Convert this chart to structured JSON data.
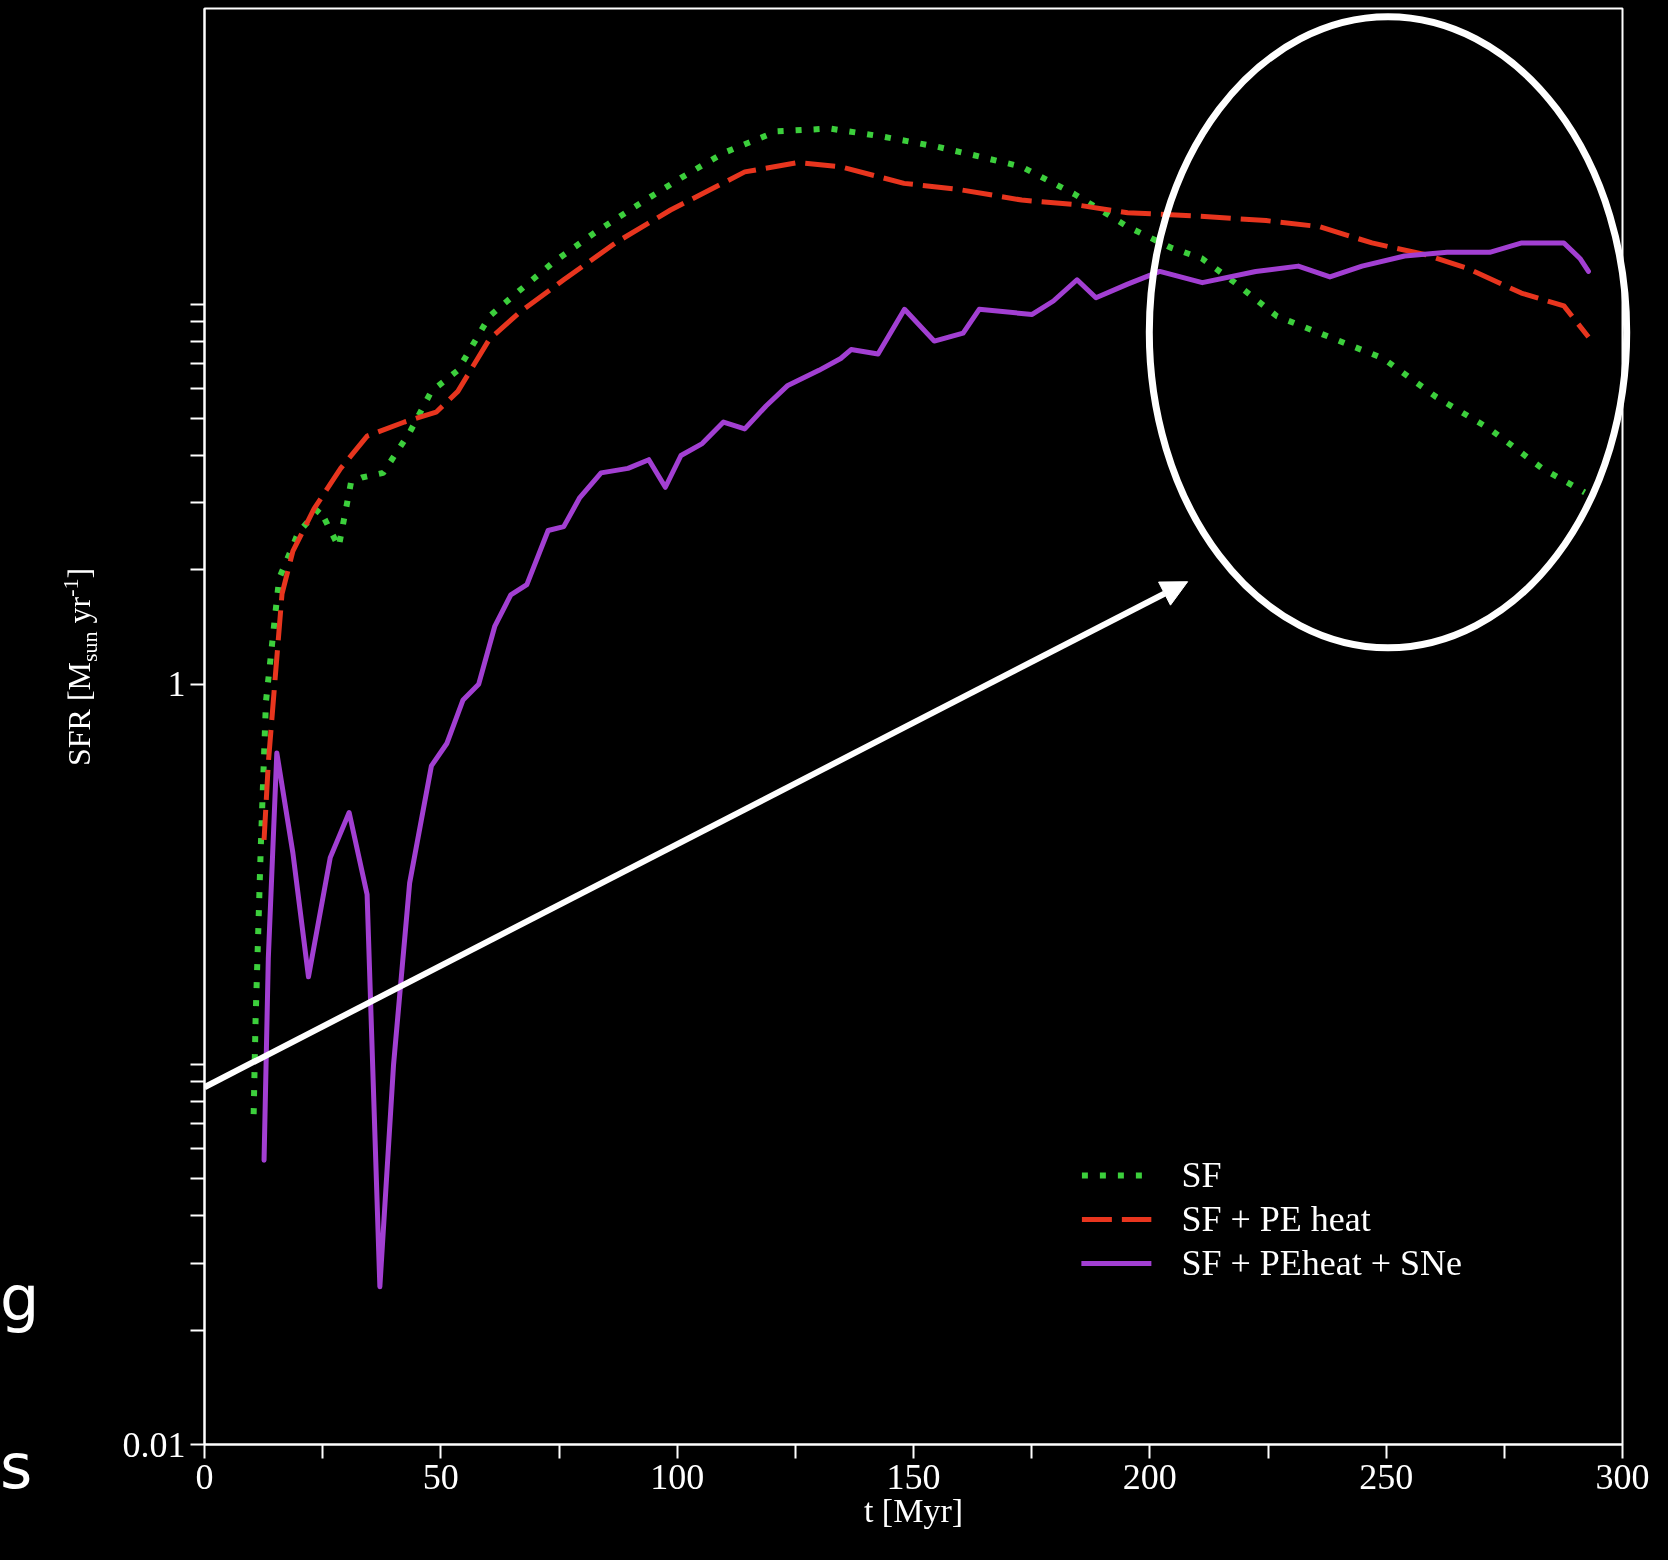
{
  "chart_data": {
    "type": "line",
    "xlabel": "t [Myr]",
    "ylabel": "SFR [M$_{sun}$ yr$^{-1}$]",
    "xlim": [
      0,
      300
    ],
    "ylim": [
      0.01,
      60
    ],
    "log": "y",
    "xticks": [
      0,
      {
        "value": 25,
        "label": null
      },
      50,
      {
        "value": 75,
        "label": null
      },
      100,
      {
        "value": 125,
        "label": null
      },
      150,
      {
        "value": 175,
        "label": null
      },
      200,
      {
        "value": 225,
        "label": null
      },
      250,
      {
        "value": 275,
        "label": null
      },
      300
    ],
    "yticks": [
      0.01,
      {
        "value": 0.02,
        "label": null
      },
      {
        "value": 0.03,
        "label": null
      },
      {
        "value": 0.04,
        "label": null
      },
      {
        "value": 0.05,
        "label": null
      },
      {
        "value": 0.06,
        "label": null
      },
      {
        "value": 0.07,
        "label": null
      },
      {
        "value": 0.08,
        "label": null
      },
      {
        "value": 0.09,
        "label": null
      },
      {
        "value": 0.1,
        "label": null
      },
      1,
      {
        "value": 2,
        "label": null
      },
      {
        "value": 3,
        "label": null
      },
      {
        "value": 4,
        "label": null
      },
      {
        "value": 5,
        "label": null
      },
      {
        "value": 6,
        "label": null
      },
      {
        "value": 7,
        "label": null
      },
      {
        "value": 8,
        "label": null
      },
      {
        "value": 9,
        "label": null
      },
      {
        "value": 10,
        "label": null
      }
    ],
    "grid": false,
    "legend": "bottom right",
    "annotations": [
      "g",
      "s"
    ],
    "series": [
      {
        "name": "SF",
        "color": "#3ccf3c",
        "line_style": "dotted",
        "x": [
          10.4,
          10.8,
          11.9,
          13,
          14.9,
          15.8,
          19.8,
          24.3,
          28.4,
          31,
          33.3,
          37.8,
          43.4,
          48,
          53.6,
          60.3,
          66,
          73.8,
          82.8,
          91.8,
          100.8,
          109.8,
          121,
          132.3,
          143.6,
          154.8,
          163.8,
          172.9,
          184,
          195.3,
          204.4,
          211,
          218,
          226.9,
          238,
          249.4,
          260.6,
          271.9,
          283,
          292
        ],
        "values": [
          0.074,
          0.13,
          0.37,
          0.9,
          1.5,
          1.9,
          2.5,
          2.9,
          2.3,
          3.4,
          3.5,
          3.6,
          4.6,
          5.9,
          6.7,
          9.3,
          10.7,
          12.9,
          15.5,
          18.3,
          21.5,
          25,
          28.5,
          29,
          27.6,
          26,
          24.5,
          23,
          19.5,
          16,
          14.1,
          13.2,
          11.4,
          9.3,
          8.2,
          7.2,
          5.7,
          4.7,
          3.7,
          3.2
        ]
      },
      {
        "name": "SF + PE heat",
        "color": "#e8351e",
        "line_style": "dashed",
        "x": [
          12.6,
          13.5,
          14.9,
          16.4,
          18.7,
          23.2,
          28.8,
          34.4,
          42.3,
          49,
          53.6,
          60.3,
          67,
          76,
          87.3,
          98.6,
          114.3,
          125.6,
          134.6,
          148,
          159,
          172.9,
          184,
          195.3,
          208.9,
          224.6,
          235.9,
          247,
          258.4,
          267.4,
          278.6,
          287.6,
          292.8
        ],
        "values": [
          0.39,
          0.62,
          1.02,
          1.73,
          2.24,
          2.9,
          3.7,
          4.5,
          4.9,
          5.2,
          5.9,
          8.1,
          9.6,
          11.6,
          14.6,
          17.7,
          22.3,
          23.6,
          23,
          20.8,
          20.1,
          18.8,
          18.3,
          17.4,
          17.1,
          16.6,
          16,
          14.5,
          13.5,
          12.4,
          10.7,
          9.9,
          8.2
        ]
      },
      {
        "name": "SF + PEheat + SNe",
        "color": "#a23fd2",
        "line_style": "solid",
        "x": [
          12.6,
          13.5,
          15.3,
          18.7,
          22,
          26.6,
          30.6,
          34.4,
          37.1,
          40,
          43.4,
          48,
          51.3,
          54.7,
          58,
          61.4,
          64.8,
          68.2,
          72.7,
          76,
          79.4,
          83.9,
          89.6,
          94,
          97.5,
          100.8,
          105.3,
          109.8,
          114.3,
          118.8,
          123.3,
          130,
          134.6,
          136.8,
          142.5,
          148.1,
          154.4,
          160.5,
          163.9,
          175.1,
          179.6,
          184.6,
          188.6,
          195.3,
          202.1,
          211.1,
          222.4,
          231.4,
          238.1,
          244.9,
          253.9,
          262.9,
          271.9,
          278.7,
          287.6,
          291,
          292.8
        ],
        "values": [
          0.056,
          0.19,
          0.66,
          0.36,
          0.17,
          0.35,
          0.46,
          0.28,
          0.026,
          0.1,
          0.3,
          0.61,
          0.7,
          0.91,
          1.0,
          1.42,
          1.72,
          1.83,
          2.54,
          2.6,
          3.1,
          3.6,
          3.7,
          3.9,
          3.3,
          4.0,
          4.3,
          4.9,
          4.7,
          5.4,
          6.1,
          6.7,
          7.2,
          7.6,
          7.4,
          9.7,
          8.0,
          8.4,
          9.7,
          9.4,
          10.2,
          11.6,
          10.4,
          11.3,
          12.2,
          11.4,
          12.2,
          12.6,
          11.8,
          12.6,
          13.4,
          13.7,
          13.7,
          14.5,
          14.5,
          13.2,
          12.2
        ]
      }
    ]
  }
}
